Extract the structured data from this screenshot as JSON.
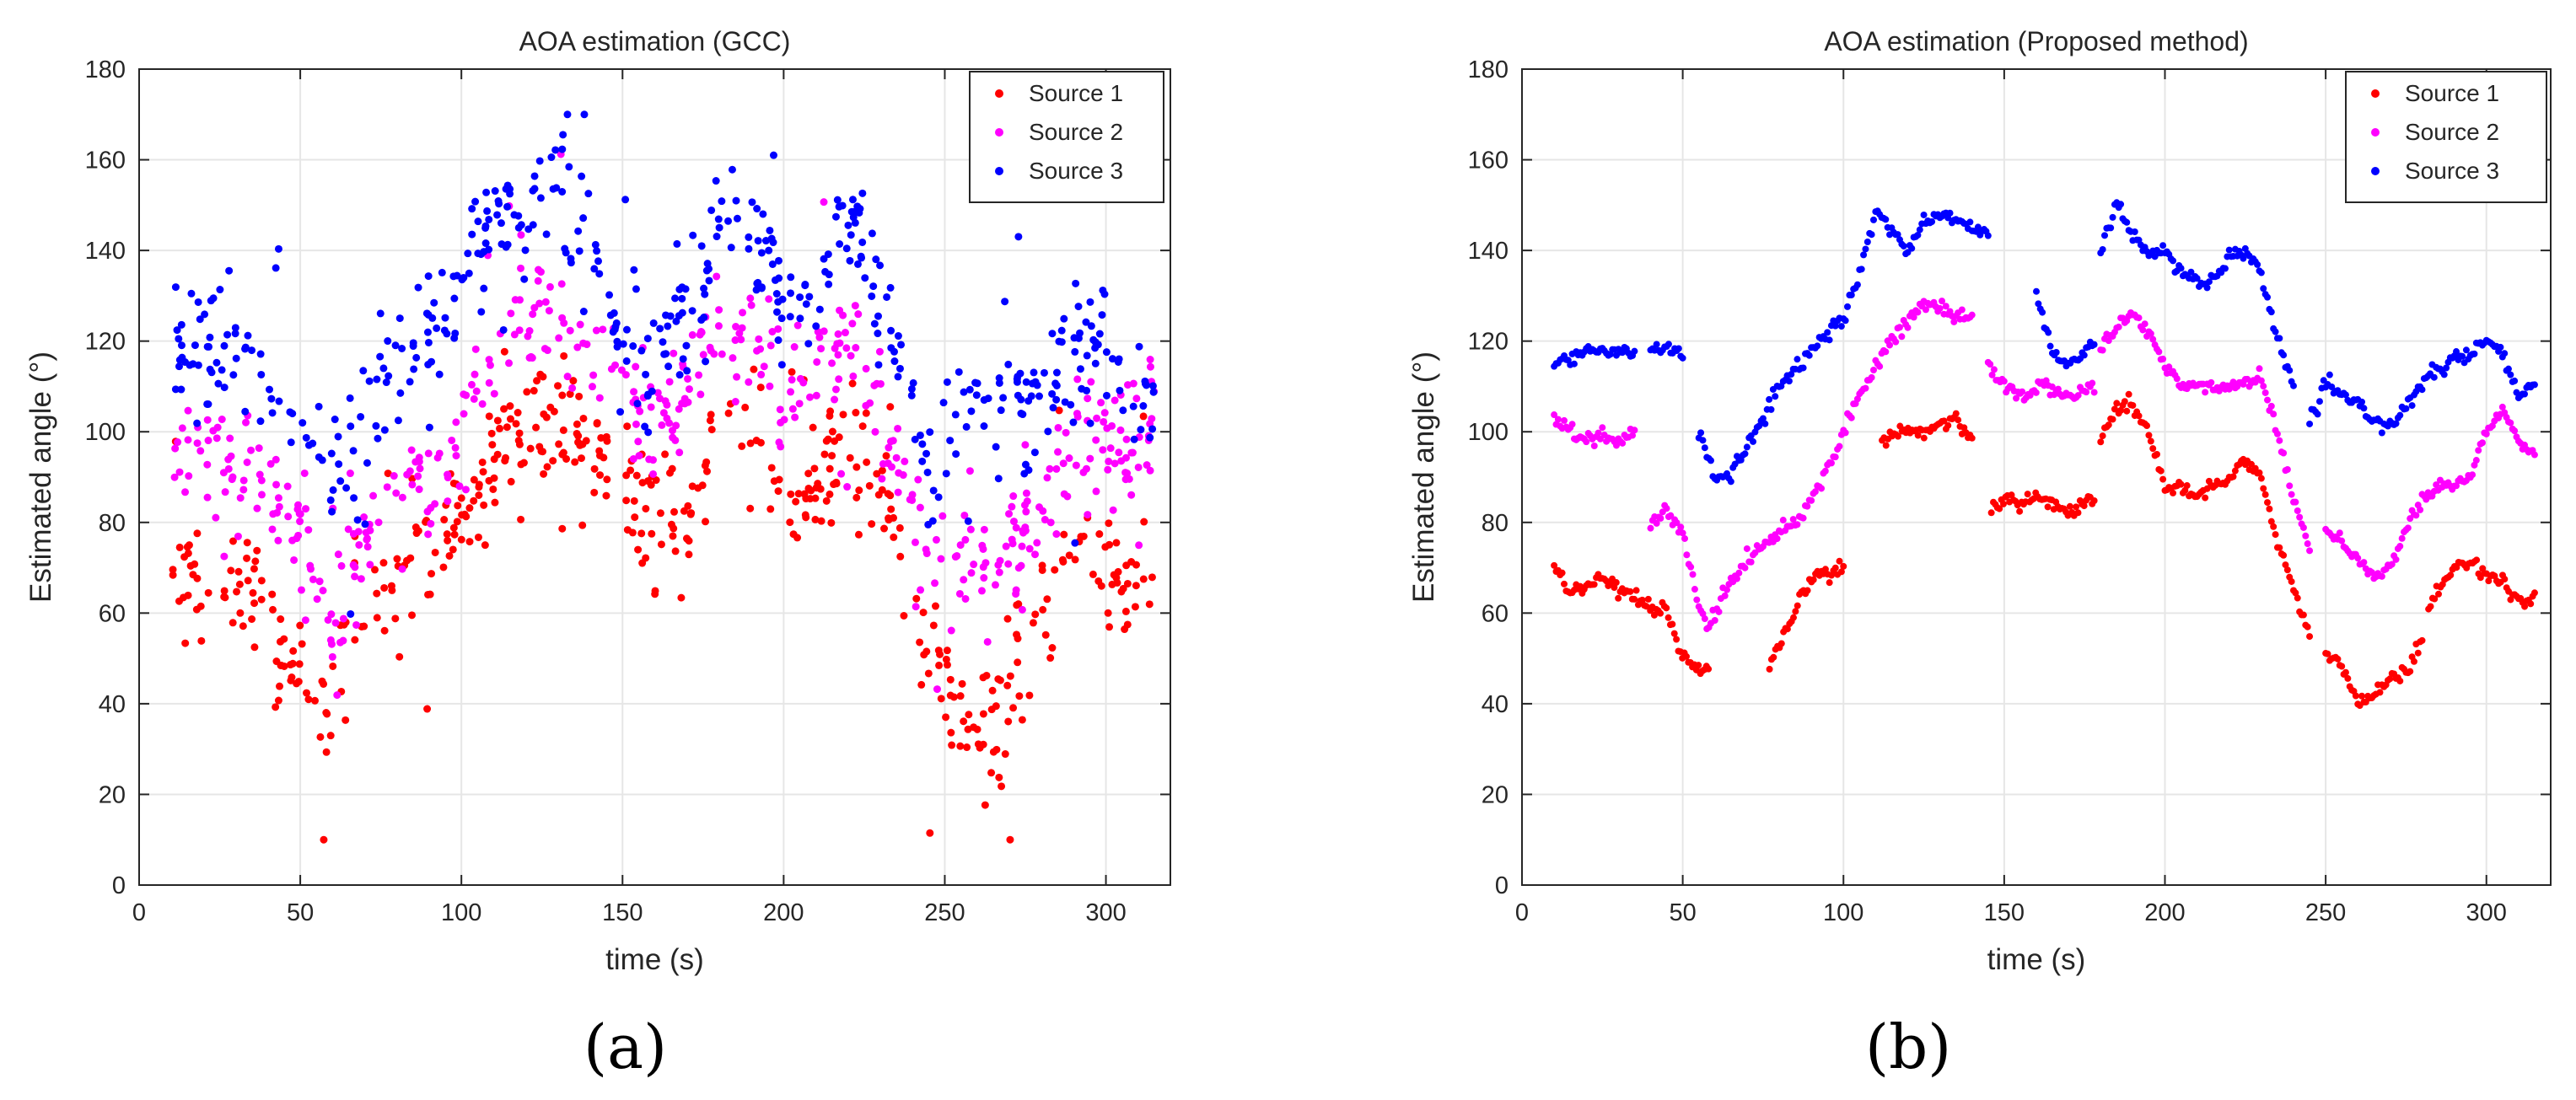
{
  "colors": {
    "source1": "#ff0000",
    "source2": "#ff00ff",
    "source3": "#0000ff",
    "grid": "#e6e6e6",
    "axis": "#262626"
  },
  "chart_data": [
    {
      "type": "scatter",
      "panel_label": "(a)",
      "title": "AOA estimation (GCC)",
      "xlabel": "time (s)",
      "ylabel": "Estimated angle (°)",
      "xlim": [
        0,
        320
      ],
      "ylim": [
        0,
        180
      ],
      "xticks": [
        0,
        50,
        100,
        150,
        200,
        250,
        300
      ],
      "yticks": [
        0,
        20,
        40,
        60,
        80,
        100,
        120,
        140,
        160,
        180
      ],
      "grid": true,
      "legend": "top-right",
      "noise": "high",
      "series": [
        {
          "name": "Source 1",
          "color": "#ff0000",
          "x": [
            10,
            20,
            30,
            40,
            45,
            50,
            55,
            60,
            65,
            70,
            75,
            80,
            85,
            90,
            95,
            100,
            105,
            110,
            115,
            120,
            130,
            140,
            145,
            150,
            155,
            160,
            165,
            170,
            175,
            180,
            185,
            190,
            195,
            200,
            205,
            210,
            215,
            220,
            225,
            230,
            235,
            240,
            245,
            250,
            255,
            260,
            265,
            270,
            275,
            280,
            285,
            290,
            295,
            300,
            305,
            310,
            315
          ],
          "y": [
            68,
            68,
            65,
            55,
            48,
            47,
            46,
            45,
            52,
            58,
            62,
            65,
            70,
            72,
            75,
            80,
            85,
            90,
            97,
            100,
            103,
            98,
            90,
            88,
            85,
            82,
            80,
            82,
            92,
            100,
            103,
            103,
            98,
            87,
            85,
            88,
            95,
            97,
            95,
            85,
            75,
            60,
            50,
            45,
            38,
            33,
            33,
            40,
            50,
            60,
            70,
            72,
            70,
            70,
            67,
            65,
            70
          ]
        },
        {
          "name": "Source 2",
          "color": "#ff00ff",
          "x": [
            10,
            20,
            30,
            35,
            40,
            45,
            50,
            55,
            60,
            65,
            70,
            75,
            80,
            85,
            90,
            95,
            100,
            105,
            110,
            115,
            120,
            125,
            130,
            135,
            140,
            145,
            150,
            155,
            160,
            165,
            170,
            175,
            180,
            185,
            190,
            195,
            200,
            205,
            210,
            215,
            220,
            225,
            230,
            235,
            240,
            245,
            250,
            255,
            260,
            265,
            270,
            275,
            280,
            285,
            290,
            295,
            300,
            305,
            310,
            315
          ],
          "y": [
            98,
            97,
            95,
            90,
            85,
            80,
            75,
            65,
            58,
            68,
            75,
            80,
            85,
            88,
            90,
            93,
            100,
            107,
            113,
            120,
            127,
            127,
            125,
            123,
            118,
            112,
            110,
            107,
            102,
            102,
            107,
            115,
            122,
            120,
            118,
            112,
            105,
            107,
            115,
            120,
            118,
            115,
            105,
            92,
            80,
            72,
            70,
            70,
            68,
            70,
            75,
            80,
            85,
            90,
            95,
            100,
            98,
            95,
            97,
            100
          ]
        },
        {
          "name": "Source 3",
          "color": "#0000ff",
          "x": [
            10,
            20,
            30,
            40,
            45,
            50,
            55,
            60,
            65,
            70,
            75,
            80,
            85,
            90,
            95,
            100,
            105,
            110,
            115,
            120,
            125,
            130,
            135,
            140,
            145,
            150,
            155,
            160,
            165,
            170,
            175,
            180,
            185,
            190,
            195,
            200,
            205,
            210,
            215,
            220,
            225,
            230,
            235,
            240,
            245,
            250,
            255,
            260,
            265,
            270,
            275,
            280,
            285,
            290,
            295,
            300,
            305,
            310,
            315
          ],
          "y": [
            118,
            118,
            118,
            108,
            105,
            100,
            95,
            88,
            90,
            100,
            108,
            112,
            118,
            120,
            125,
            130,
            140,
            150,
            148,
            145,
            150,
            152,
            148,
            140,
            130,
            120,
            115,
            118,
            125,
            128,
            130,
            145,
            148,
            140,
            135,
            130,
            130,
            132,
            138,
            145,
            140,
            130,
            118,
            105,
            98,
            100,
            105,
            108,
            108,
            105,
            105,
            108,
            112,
            115,
            118,
            120,
            110,
            105,
            108
          ]
        }
      ]
    },
    {
      "type": "scatter",
      "panel_label": "(b)",
      "title": "AOA estimation (Proposed method)",
      "xlabel": "time (s)",
      "ylabel": "Estimated angle (°)",
      "xlim": [
        0,
        320
      ],
      "ylim": [
        0,
        180
      ],
      "xticks": [
        0,
        50,
        100,
        150,
        200,
        250,
        300
      ],
      "yticks": [
        0,
        20,
        40,
        60,
        80,
        100,
        120,
        140,
        160,
        180
      ],
      "grid": true,
      "legend": "top-right",
      "noise": "low",
      "series": [
        {
          "name": "Source 1",
          "color": "#ff0000",
          "segments": [
            {
              "x": [
                10,
                15,
                25,
                35,
                45,
                50,
                55,
                58
              ],
              "y": [
                70,
                65,
                67,
                63,
                60,
                50,
                47,
                47
              ]
            },
            {
              "x": [
                77,
                85,
                90,
                100
              ],
              "y": [
                48,
                60,
                68,
                70
              ]
            },
            {
              "x": [
                112,
                118,
                125,
                130,
                135,
                140
              ],
              "y": [
                98,
                100,
                100,
                102,
                103,
                98
              ]
            },
            {
              "x": [
                146,
                150,
                155,
                160,
                170,
                178
              ],
              "y": [
                82,
                86,
                84,
                86,
                82,
                86
              ]
            },
            {
              "x": [
                180,
                185,
                190,
                195,
                200,
                210,
                220,
                225,
                230,
                235,
                240,
                245
              ],
              "y": [
                98,
                105,
                106,
                100,
                88,
                86,
                90,
                94,
                90,
                75,
                65,
                55
              ]
            },
            {
              "x": [
                250,
                255,
                260,
                265,
                270,
                275,
                280
              ],
              "y": [
                52,
                48,
                40,
                42,
                46,
                46,
                55
              ]
            },
            {
              "x": [
                282,
                290,
                295,
                300,
                305,
                310,
                315
              ],
              "y": [
                62,
                70,
                72,
                68,
                67,
                62,
                63
              ]
            }
          ]
        },
        {
          "name": "Source 2",
          "color": "#ff00ff",
          "segments": [
            {
              "x": [
                10,
                15,
                20,
                25,
                30,
                35
              ],
              "y": [
                103,
                100,
                98,
                100,
                97,
                100
              ]
            },
            {
              "x": [
                40,
                45,
                50,
                55,
                58,
                63,
                70,
                75,
                80,
                85,
                90,
                95,
                100,
                105,
                110,
                115,
                120,
                125,
                130,
                135,
                140
              ],
              "y": [
                80,
                82,
                78,
                62,
                57,
                64,
                72,
                75,
                78,
                80,
                85,
                92,
                100,
                108,
                115,
                120,
                125,
                128,
                127,
                125,
                125
              ]
            },
            {
              "x": [
                145,
                150,
                155,
                160,
                170,
                178
              ],
              "y": [
                115,
                110,
                108,
                110,
                108,
                110
              ]
            },
            {
              "x": [
                180,
                185,
                190,
                195,
                200,
                205,
                210,
                220,
                230,
                235,
                240,
                245
              ],
              "y": [
                118,
                123,
                126,
                122,
                115,
                110,
                110,
                110,
                112,
                100,
                85,
                75
              ]
            },
            {
              "x": [
                250,
                255,
                260,
                265,
                270,
                275,
                280,
                285,
                290,
                295,
                300,
                305,
                310,
                315
              ],
              "y": [
                78,
                76,
                72,
                68,
                70,
                78,
                85,
                88,
                88,
                90,
                100,
                105,
                98,
                95
              ]
            }
          ]
        },
        {
          "name": "Source 3",
          "color": "#0000ff",
          "segments": [
            {
              "x": [
                10,
                15,
                20,
                25,
                30,
                35
              ],
              "y": [
                115,
                116,
                118,
                118,
                118,
                118
              ]
            },
            {
              "x": [
                40,
                45,
                50
              ],
              "y": [
                118,
                118,
                117
              ]
            },
            {
              "x": [
                55,
                60,
                65,
                70,
                75,
                80,
                85,
                90,
                95,
                100,
                105,
                110,
                115,
                120,
                125,
                130,
                135,
                140,
                145
              ],
              "y": [
                100,
                90,
                90,
                97,
                103,
                110,
                113,
                118,
                122,
                125,
                135,
                148,
                145,
                140,
                146,
                148,
                147,
                145,
                143
              ]
            },
            {
              "x": [
                160,
                165,
                170,
                175,
                178
              ],
              "y": [
                130,
                118,
                115,
                118,
                120
              ]
            },
            {
              "x": [
                180,
                185,
                190,
                195,
                200,
                205,
                210,
                215,
                220,
                225,
                230,
                235,
                240
              ],
              "y": [
                140,
                150,
                143,
                140,
                140,
                135,
                133,
                133,
                138,
                140,
                135,
                120,
                110
              ]
            },
            {
              "x": [
                245,
                250,
                255,
                260,
                265,
                270,
                275,
                280,
                285,
                290,
                295,
                300,
                305,
                310,
                315
              ],
              "y": [
                102,
                110,
                108,
                106,
                103,
                101,
                106,
                110,
                114,
                116,
                117,
                120,
                117,
                108,
                110
              ]
            }
          ]
        }
      ]
    }
  ]
}
